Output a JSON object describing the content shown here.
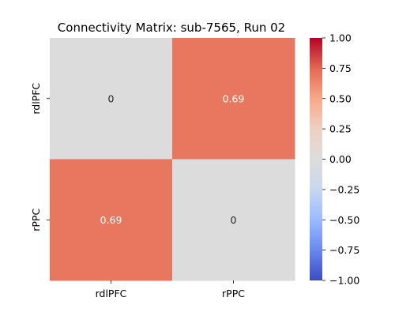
{
  "chart_data": {
    "type": "heatmap",
    "title": "Connectivity Matrix: sub-7565, Run 02",
    "row_labels": [
      "rdlPFC",
      "rPPC"
    ],
    "col_labels": [
      "rdlPFC",
      "rPPC"
    ],
    "values": [
      [
        0,
        0.69
      ],
      [
        0.69,
        0
      ]
    ],
    "cell_text": [
      [
        "0",
        "0.69"
      ],
      [
        "0.69",
        "0"
      ]
    ],
    "vmin": -1.0,
    "vmax": 1.0,
    "colormap": "coolwarm",
    "colorbar_ticks": [
      1.0,
      0.75,
      0.5,
      0.25,
      0.0,
      -0.25,
      -0.5,
      -0.75,
      -1.0
    ],
    "colorbar_tick_labels": [
      "1.00",
      "0.75",
      "0.50",
      "0.25",
      "0.00",
      "−0.25",
      "−0.50",
      "−0.75",
      "−1.00"
    ],
    "cell_text_colors": [
      [
        "#262626",
        "#ffffff"
      ],
      [
        "#ffffff",
        "#262626"
      ]
    ],
    "colormap_stops": [
      "#3b4cc0",
      "#6889ee",
      "#9abbff",
      "#c9d7ef",
      "#dddcdc",
      "#edd1c2",
      "#f7a889",
      "#e26952",
      "#b40426"
    ],
    "xlabel": "",
    "ylabel": ""
  }
}
